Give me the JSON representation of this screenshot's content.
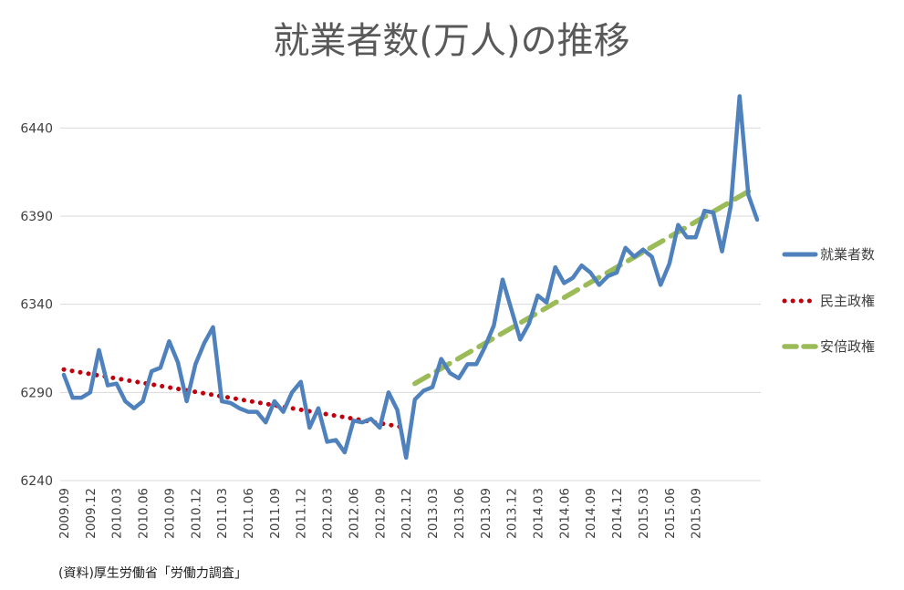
{
  "chart_data": {
    "type": "line",
    "title": "就業者数(万人)の推移",
    "source_note": "(資料)厚生労働省「労働力調査」",
    "ylim": [
      6240,
      6465
    ],
    "yticks": [
      6240,
      6290,
      6340,
      6390,
      6440
    ],
    "grid": true,
    "legend_position": "right",
    "x_tick_labels": [
      "2009.09",
      "2009.12",
      "2010.03",
      "2010.06",
      "2010.09",
      "2010.12",
      "2011.03",
      "2011.06",
      "2011.09",
      "2011.12",
      "2012.03",
      "2012.06",
      "2012.09",
      "2012.12",
      "2013.03",
      "2013.06",
      "2013.09",
      "2013.12",
      "2014.03",
      "2014.06",
      "2014.09",
      "2014.12",
      "2015.03",
      "2015.06",
      "2015.09"
    ],
    "x_tick_step": 3,
    "series": [
      {
        "name": "就業者数",
        "color": "#4f81bd",
        "style": "solid",
        "values": [
          6300,
          6287,
          6287,
          6290,
          6314,
          6294,
          6295,
          6285,
          6281,
          6285,
          6302,
          6304,
          6319,
          6307,
          6285,
          6306,
          6318,
          6327,
          6285,
          6284,
          6281,
          6279,
          6279,
          6273,
          6285,
          6279,
          6290,
          6296,
          6270,
          6281,
          6262,
          6263,
          6256,
          6274,
          6273,
          6275,
          6270,
          6290,
          6280,
          6253,
          6286,
          6291,
          6293,
          6309,
          6301,
          6298,
          6306,
          6306,
          6316,
          6328,
          6354,
          6337,
          6320,
          6329,
          6345,
          6341,
          6361,
          6352,
          6355,
          6362,
          6358,
          6351,
          6356,
          6358,
          6372,
          6367,
          6371,
          6367,
          6351,
          6363,
          6385,
          6378,
          6378,
          6393,
          6392,
          6370,
          6396,
          6458,
          6402,
          6388
        ]
      },
      {
        "name": "民主政権",
        "color": "#c0000c",
        "style": "dotted",
        "start_index": 0,
        "end_value_index": 39,
        "start_value": 6303,
        "end_value": 6270
      },
      {
        "name": "安倍政権",
        "color": "#9bbb59",
        "style": "dashed",
        "start_index": 40,
        "end_value_index": 78,
        "start_value": 6295,
        "end_value": 6404
      }
    ]
  }
}
